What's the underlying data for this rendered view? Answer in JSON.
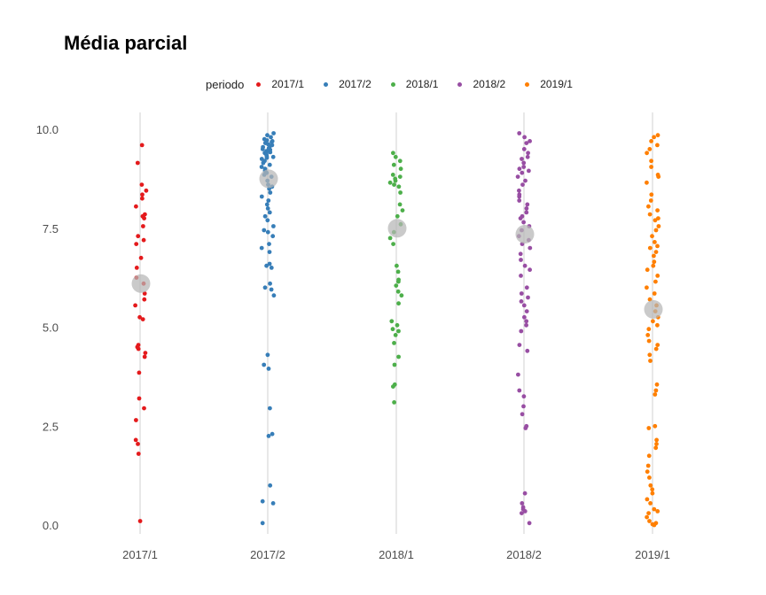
{
  "chart_data": {
    "type": "scatter",
    "title": "Média parcial",
    "xlabel": "",
    "ylabel": "",
    "ylim": [
      0,
      10
    ],
    "yticks": [
      "0.0",
      "2.5",
      "5.0",
      "7.5",
      "10.0"
    ],
    "grid": "vertical lines at categories",
    "legend": {
      "title": "periodo",
      "position": "top"
    },
    "categories": [
      "2017/1",
      "2017/2",
      "2018/1",
      "2018/2",
      "2019/1"
    ],
    "series": [
      {
        "name": "2017/1",
        "color": "#e41a1c",
        "mean": 6.1,
        "values": [
          9.6,
          9.15,
          8.6,
          8.45,
          8.35,
          8.25,
          8.05,
          7.85,
          7.8,
          7.75,
          7.55,
          7.3,
          7.2,
          7.1,
          6.75,
          6.5,
          6.25,
          6.1,
          5.85,
          5.7,
          5.55,
          5.25,
          5.2,
          4.55,
          4.5,
          4.45,
          4.35,
          4.25,
          3.85,
          3.2,
          2.95,
          2.65,
          2.15,
          2.05,
          1.8,
          0.1
        ]
      },
      {
        "name": "2017/2",
        "color": "#377eb8",
        "mean": 8.75,
        "values": [
          9.9,
          9.85,
          9.8,
          9.75,
          9.72,
          9.7,
          9.68,
          9.65,
          9.62,
          9.6,
          9.58,
          9.55,
          9.52,
          9.5,
          9.48,
          9.45,
          9.42,
          9.4,
          9.38,
          9.35,
          9.32,
          9.3,
          9.28,
          9.25,
          9.2,
          9.15,
          9.1,
          9.05,
          9.0,
          8.95,
          8.9,
          8.85,
          8.8,
          8.7,
          8.6,
          8.55,
          8.5,
          8.4,
          8.3,
          8.2,
          8.1,
          8.0,
          7.9,
          7.8,
          7.7,
          7.55,
          7.45,
          7.4,
          7.3,
          7.1,
          7.0,
          6.9,
          6.6,
          6.55,
          6.5,
          6.1,
          6.0,
          5.95,
          5.8,
          4.3,
          4.05,
          3.95,
          2.95,
          2.3,
          2.25,
          1.0,
          0.6,
          0.55,
          0.05
        ]
      },
      {
        "name": "2018/1",
        "color": "#4daf4a",
        "mean": 7.5,
        "values": [
          9.4,
          9.3,
          9.2,
          9.1,
          9.0,
          8.85,
          8.8,
          8.75,
          8.7,
          8.65,
          8.6,
          8.55,
          8.4,
          8.1,
          7.95,
          7.8,
          7.6,
          7.4,
          7.25,
          7.1,
          6.55,
          6.4,
          6.2,
          6.15,
          6.05,
          5.9,
          5.8,
          5.6,
          5.15,
          5.05,
          4.95,
          4.9,
          4.8,
          4.6,
          4.25,
          4.05,
          3.55,
          3.5,
          3.1
        ]
      },
      {
        "name": "2018/2",
        "color": "#984ea3",
        "mean": 7.35,
        "values": [
          9.9,
          9.8,
          9.7,
          9.65,
          9.5,
          9.4,
          9.3,
          9.25,
          9.15,
          9.05,
          9.0,
          8.95,
          8.9,
          8.8,
          8.7,
          8.6,
          8.45,
          8.35,
          8.3,
          8.2,
          8.1,
          8.0,
          7.9,
          7.8,
          7.75,
          7.65,
          7.55,
          7.45,
          7.3,
          7.2,
          7.1,
          7.0,
          6.85,
          6.7,
          6.55,
          6.45,
          6.3,
          6.0,
          5.85,
          5.75,
          5.65,
          5.55,
          5.4,
          5.25,
          5.15,
          5.05,
          4.9,
          4.55,
          4.4,
          3.8,
          3.4,
          3.25,
          3.0,
          2.8,
          2.5,
          2.45,
          0.8,
          0.55,
          0.45,
          0.4,
          0.35,
          0.3,
          0.05
        ]
      },
      {
        "name": "2019/1",
        "color": "#ff7f00",
        "mean": 5.45,
        "values": [
          9.85,
          9.8,
          9.7,
          9.6,
          9.5,
          9.4,
          9.2,
          9.05,
          8.85,
          8.8,
          8.65,
          8.35,
          8.2,
          8.05,
          7.95,
          7.85,
          7.75,
          7.7,
          7.55,
          7.45,
          7.3,
          7.15,
          7.05,
          7.0,
          6.9,
          6.8,
          6.65,
          6.55,
          6.45,
          6.3,
          6.15,
          6.0,
          5.85,
          5.7,
          5.55,
          5.4,
          5.25,
          5.15,
          5.05,
          4.95,
          4.8,
          4.65,
          4.55,
          4.45,
          4.3,
          4.15,
          3.55,
          3.4,
          3.3,
          2.5,
          2.45,
          2.15,
          2.05,
          1.95,
          1.75,
          1.5,
          1.35,
          1.2,
          1.0,
          0.9,
          0.8,
          0.65,
          0.55,
          0.4,
          0.35,
          0.3,
          0.2,
          0.1,
          0.05,
          0.02,
          0.0
        ]
      }
    ]
  }
}
